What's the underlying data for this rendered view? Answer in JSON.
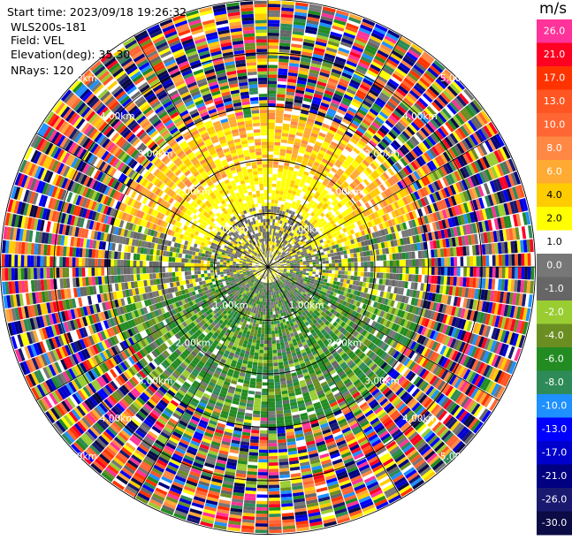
{
  "header": {
    "start_time": "Start time: 2023/09/18 19:26:32",
    "instrument": "WLS200s-181",
    "field": "Field: VEL",
    "elevation": "Elevation(deg): 35.30",
    "nrays": "NRays: 120"
  },
  "chart_data": {
    "type": "heatmap",
    "projection": "polar-ppi",
    "title": "",
    "nrays": 120,
    "range_rings_km": [
      1.0,
      2.0,
      3.0,
      4.0,
      5.0
    ],
    "ring_labels": [
      "1.00km",
      "2.00km",
      "3.00km",
      "4.00km",
      "5.00km"
    ],
    "radial_lines_deg": [
      0,
      30,
      60,
      90,
      120,
      150,
      180,
      210,
      240,
      270,
      300,
      330
    ],
    "colorbar": {
      "unit": "m/s",
      "tick_labels": [
        "26.0",
        "21.0",
        "17.0",
        "13.0",
        "10.0",
        "8.0",
        "6.0",
        "4.0",
        "2.0",
        "1.0",
        "0.0",
        "-1.0",
        "-2.0",
        "-4.0",
        "-6.0",
        "-8.0",
        "-10.0",
        "-13.0",
        "-17.0",
        "-21.0",
        "-26.0",
        "-30.0"
      ],
      "colors": [
        "#ff3399",
        "#ff0022",
        "#ff3300",
        "#ff5522",
        "#ff6633",
        "#ff8844",
        "#ffaa33",
        "#ffcc00",
        "#ffff00",
        "#ffffff",
        "#777777",
        "#666666",
        "#9acd32",
        "#6b8e23",
        "#228b22",
        "#2e8b57",
        "#1e90ff",
        "#0000ff",
        "#0000cd",
        "#000080",
        "#191970",
        "#0b0b45"
      ]
    },
    "velocity_by_range_km": [
      {
        "range": [
          0.0,
          1.0
        ],
        "description": "near zero and slightly positive",
        "dominant_values": [
          "0.0",
          "1.0",
          "2.0"
        ]
      },
      {
        "range": [
          1.0,
          3.0
        ],
        "north_sector": [
          "2.0",
          "4.0",
          "6.0"
        ],
        "south_sector": [
          "-2.0",
          "-4.0",
          "-6.0",
          "-8.0"
        ]
      },
      {
        "range": [
          3.0,
          5.0
        ],
        "description": "noisy, full colour range",
        "dominant_values": [
          "-30.0",
          "26.0"
        ]
      }
    ]
  }
}
